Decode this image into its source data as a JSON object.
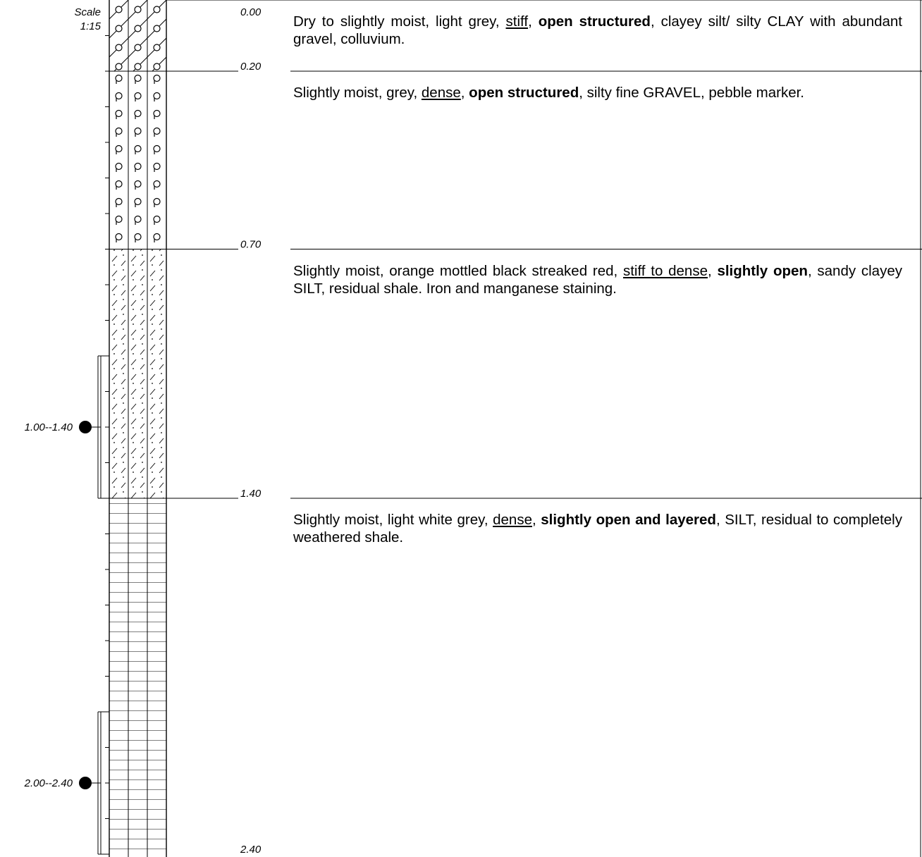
{
  "scale": {
    "label": "Scale",
    "value": "1:15"
  },
  "depth_start": "0.00",
  "layers": [
    {
      "from": 0.0,
      "to": 0.2,
      "depth_label": "0.20",
      "pattern": "clay-gravel",
      "description": [
        {
          "t": "Dry to slightly moist, light grey, "
        },
        {
          "t": "stiff",
          "u": true
        },
        {
          "t": ", "
        },
        {
          "t": "open structured",
          "b": true
        },
        {
          "t": ", clayey silt/ silty CLAY with abundant gravel, colluvium."
        }
      ]
    },
    {
      "from": 0.2,
      "to": 0.7,
      "depth_label": "0.70",
      "pattern": "gravel",
      "description": [
        {
          "t": "Slightly moist, grey, "
        },
        {
          "t": "dense",
          "u": true
        },
        {
          "t": ", "
        },
        {
          "t": "open structured",
          "b": true
        },
        {
          "t": ", silty fine GRAVEL, pebble marker."
        }
      ]
    },
    {
      "from": 0.7,
      "to": 1.4,
      "depth_label": "1.40",
      "pattern": "sandy-clayey-silt",
      "description": [
        {
          "t": "Slightly moist, orange mottled black streaked red, "
        },
        {
          "t": "stiff to dense",
          "u": true
        },
        {
          "t": ", "
        },
        {
          "t": "slightly open",
          "b": true
        },
        {
          "t": ", sandy clayey SILT, residual shale. Iron and manganese staining."
        }
      ]
    },
    {
      "from": 1.4,
      "to": 2.4,
      "depth_label": "2.40",
      "pattern": "silt",
      "description": [
        {
          "t": "Slightly moist, light white grey, "
        },
        {
          "t": "dense",
          "u": true
        },
        {
          "t": ", "
        },
        {
          "t": "slightly open and layered",
          "b": true
        },
        {
          "t": ", SILT, residual to completely weathered shale."
        }
      ]
    }
  ],
  "samples": [
    {
      "from": 1.0,
      "to": 1.4,
      "label": "1.00--1.40"
    },
    {
      "from": 2.0,
      "to": 2.4,
      "label": "2.00--2.40"
    }
  ]
}
